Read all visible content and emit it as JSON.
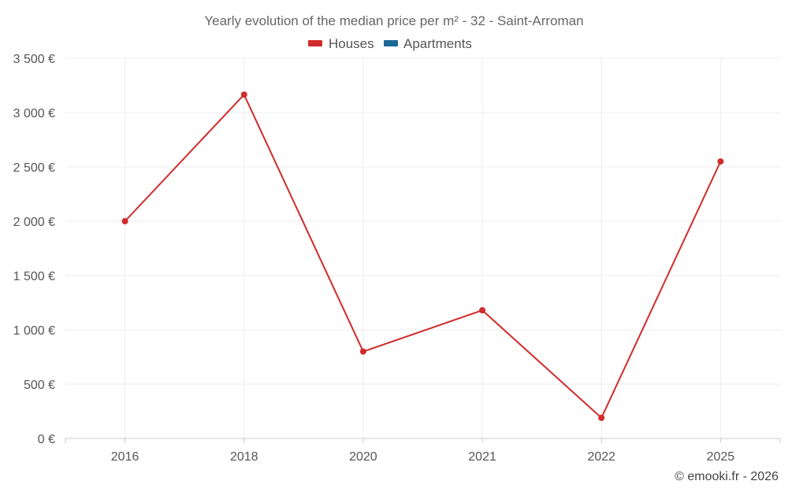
{
  "chart_data": {
    "type": "line",
    "title": "Yearly evolution of the median price per m² - 32 - Saint-Arroman",
    "categories": [
      "2016",
      "2018",
      "2020",
      "2021",
      "2022",
      "2025"
    ],
    "series": [
      {
        "name": "Houses",
        "color": "#d12b2b",
        "values": [
          2000,
          3165,
          800,
          1180,
          190,
          2550
        ]
      },
      {
        "name": "Apartments",
        "color": "#1a6896",
        "values": [
          null,
          null,
          null,
          null,
          null,
          null
        ]
      }
    ],
    "ylim": [
      0,
      3500
    ],
    "yticks": [
      0,
      500,
      1000,
      1500,
      2000,
      2500,
      3000,
      3500
    ],
    "ytick_labels": [
      "0 €",
      "500 €",
      "1 000 €",
      "1 500 €",
      "2 000 €",
      "2 500 €",
      "3 000 €",
      "3 500 €"
    ],
    "grid": true,
    "legend_position": "top-center",
    "credit": "© emooki.fr - 2026"
  }
}
